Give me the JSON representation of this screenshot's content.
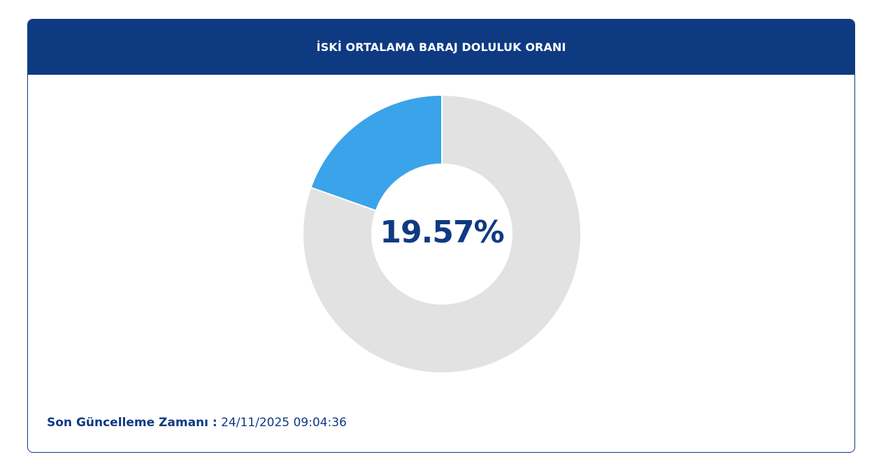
{
  "header": {
    "title": "İSKİ ORTALAMA BARAJ DOLULUK ORANI"
  },
  "chart_data": {
    "type": "pie",
    "style": "donut",
    "slices": [
      {
        "label": "",
        "value": 19.57,
        "color": "#3aa3e9"
      },
      {
        "label": "",
        "value": 80.43,
        "color": "#e2e2e2"
      }
    ],
    "center_text": "19.57%",
    "legend": "none"
  },
  "footer": {
    "label": "Son Güncelleme Zamanı :",
    "value": "24/11/2025 09:04:36"
  },
  "colors": {
    "header_bg": "#0e3a82",
    "accent": "#3aa3e9",
    "track": "#e2e2e2",
    "text": "#0e3a82"
  }
}
